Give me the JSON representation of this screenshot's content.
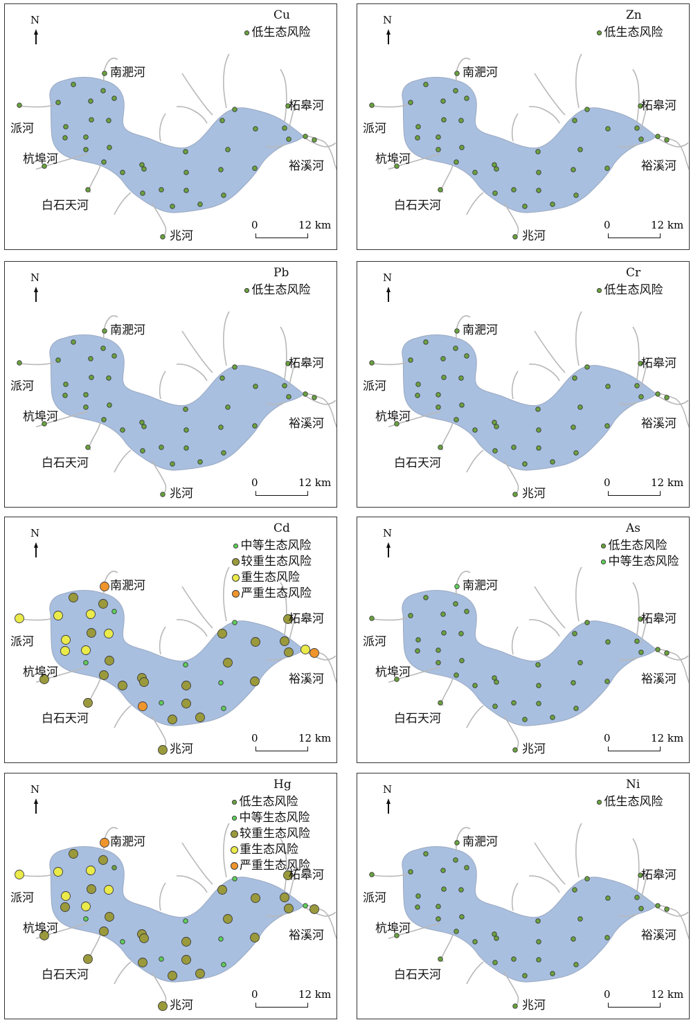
{
  "risk_levels": {
    "low": {
      "label": "低生态风险",
      "color": "#6aa23e",
      "size": "small"
    },
    "mid": {
      "label": "中等生态风险",
      "color": "#5fcf5a",
      "size": "small"
    },
    "high": {
      "label": "较重生态风险",
      "color": "#9a9a3c",
      "size": "large"
    },
    "heavy": {
      "label": "重生态风险",
      "color": "#eaea4a",
      "size": "large"
    },
    "severe": {
      "label": "严重生态风险",
      "color": "#f0952c",
      "size": "large"
    }
  },
  "colors": {
    "lake": "#a9bfdf",
    "lake_edge": "#9aa9c2",
    "river": "#b8b8b8",
    "frame": "#333333"
  },
  "north_label": "N",
  "scale": {
    "start": "0",
    "end": "12 km"
  },
  "rivers": {
    "nanfei": "南淝河",
    "pai": "派河",
    "hangbu": "杭埠河",
    "baishitian": "白石天河",
    "zhao": "兆河",
    "zhegao": "柘皋河",
    "yuxi": "裕溪河"
  },
  "panels": [
    {
      "title": "Cu",
      "legend": [
        "low"
      ],
      "sites": [
        "low",
        "low",
        "low",
        "low",
        "low",
        "low",
        "low",
        "low",
        "low",
        "low",
        "low",
        "low",
        "low",
        "low",
        "low",
        "low",
        "low",
        "low",
        "low",
        "low",
        "low",
        "low",
        "low",
        "low",
        "low",
        "low",
        "low",
        "low",
        "low",
        "low",
        "low",
        "low",
        "low",
        "low",
        "low",
        "low",
        "low",
        "low",
        "low",
        "low"
      ]
    },
    {
      "title": "Zn",
      "legend": [
        "low"
      ],
      "sites": [
        "low",
        "low",
        "low",
        "low",
        "low",
        "low",
        "low",
        "low",
        "low",
        "low",
        "low",
        "low",
        "low",
        "low",
        "low",
        "low",
        "low",
        "low",
        "low",
        "low",
        "low",
        "low",
        "low",
        "low",
        "low",
        "low",
        "low",
        "low",
        "low",
        "low",
        "low",
        "low",
        "low",
        "low",
        "low",
        "low",
        "low",
        "low",
        "low",
        "low"
      ]
    },
    {
      "title": "Pb",
      "legend": [
        "low"
      ],
      "sites": [
        "low",
        "low",
        "low",
        "low",
        "low",
        "low",
        "low",
        "low",
        "low",
        "low",
        "low",
        "low",
        "low",
        "low",
        "low",
        "low",
        "low",
        "low",
        "low",
        "low",
        "low",
        "low",
        "low",
        "low",
        "low",
        "low",
        "low",
        "low",
        "low",
        "low",
        "low",
        "low",
        "low",
        "low",
        "low",
        "low",
        "low",
        "low",
        "low",
        "low"
      ]
    },
    {
      "title": "Cr",
      "legend": [
        "low"
      ],
      "sites": [
        "low",
        "low",
        "low",
        "low",
        "low",
        "low",
        "low",
        "low",
        "low",
        "low",
        "low",
        "low",
        "low",
        "low",
        "low",
        "low",
        "low",
        "low",
        "low",
        "low",
        "low",
        "low",
        "low",
        "low",
        "low",
        "low",
        "low",
        "low",
        "low",
        "low",
        "low",
        "low",
        "low",
        "low",
        "low",
        "low",
        "low",
        "low",
        "low",
        "low"
      ]
    },
    {
      "title": "Cd",
      "legend": [
        "mid",
        "high",
        "heavy",
        "severe"
      ],
      "sites": [
        "severe",
        "high",
        "high",
        "heavy",
        "mid",
        "heavy",
        "heavy",
        "heavy",
        "high",
        "heavy",
        "heavy",
        "heavy",
        "mid",
        "high",
        "high",
        "high",
        "severe",
        "high",
        "high",
        "mid",
        "mid",
        "high",
        "high",
        "high",
        "high",
        "high",
        "high",
        "high",
        "high",
        "mid",
        "mid",
        "mid",
        "high",
        "high",
        "high",
        "high",
        "high",
        "heavy",
        "severe",
        "high"
      ]
    },
    {
      "title": "As",
      "legend": [
        "low",
        "mid"
      ],
      "sites": [
        "mid",
        "low",
        "low",
        "low",
        "low",
        "low",
        "low",
        "low",
        "low",
        "low",
        "low",
        "low",
        "low",
        "low",
        "low",
        "low",
        "low",
        "low",
        "low",
        "low",
        "low",
        "low",
        "low",
        "low",
        "low",
        "low",
        "low",
        "low",
        "low",
        "low",
        "low",
        "low",
        "low",
        "low",
        "low",
        "low",
        "low",
        "low",
        "low",
        "low"
      ]
    },
    {
      "title": "Hg",
      "legend": [
        "low",
        "mid",
        "high",
        "heavy",
        "severe"
      ],
      "sites": [
        "severe",
        "high",
        "high",
        "heavy",
        "low",
        "heavy",
        "heavy",
        "heavy",
        "high",
        "heavy",
        "heavy",
        "high",
        "mid",
        "high",
        "high",
        "high",
        "high",
        "mid",
        "high",
        "mid",
        "mid",
        "high",
        "high",
        "high",
        "high",
        "high",
        "high",
        "high",
        "high",
        "mid",
        "mid",
        "mid",
        "high",
        "high",
        "high",
        "high",
        "high",
        "mid",
        "high",
        "high"
      ]
    },
    {
      "title": "Ni",
      "legend": [
        "low"
      ],
      "sites": [
        "low",
        "low",
        "low",
        "low",
        "low",
        "low",
        "low",
        "low",
        "low",
        "low",
        "low",
        "low",
        "low",
        "low",
        "low",
        "low",
        "low",
        "low",
        "low",
        "low",
        "low",
        "low",
        "low",
        "low",
        "low",
        "low",
        "low",
        "low",
        "low",
        "low",
        "low",
        "low",
        "low",
        "low",
        "low",
        "low",
        "low",
        "low",
        "low",
        "low"
      ]
    }
  ]
}
